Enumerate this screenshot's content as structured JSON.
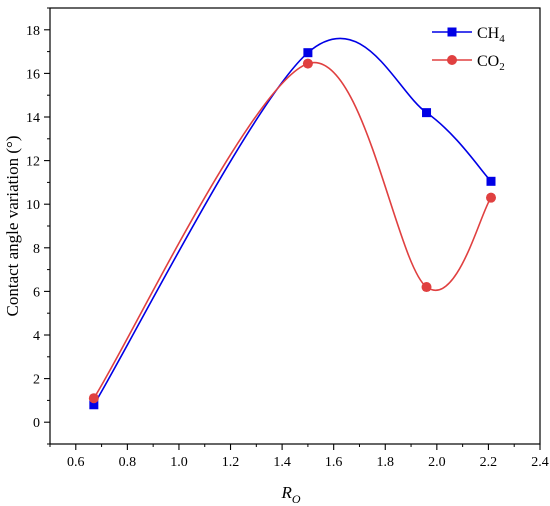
{
  "chart_data": {
    "type": "line",
    "title": "",
    "xlabel": "R",
    "xlabel_subscript": "O",
    "ylabel": "Contact angle variation (°)",
    "xlim": [
      0.5,
      2.4
    ],
    "ylim": [
      -1,
      19
    ],
    "xticks": [
      "0.6",
      "0.8",
      "1.0",
      "1.2",
      "1.4",
      "1.6",
      "1.8",
      "2.0",
      "2.2",
      "2.4"
    ],
    "yticks": [
      "0",
      "2",
      "4",
      "6",
      "8",
      "10",
      "12",
      "14",
      "16",
      "18"
    ],
    "grid": false,
    "legend_position": "top-right",
    "series": [
      {
        "name": "CH4",
        "name_base": "CH",
        "name_sub": "4",
        "color": "#0000e6",
        "marker": "square",
        "x": [
          0.67,
          1.5,
          1.96,
          2.21
        ],
        "y": [
          0.8,
          16.95,
          14.2,
          11.05
        ]
      },
      {
        "name": "CO2",
        "name_base": "CO",
        "name_sub": "2",
        "color": "#e04040",
        "marker": "circle",
        "x": [
          0.67,
          1.5,
          1.96,
          2.21
        ],
        "y": [
          1.1,
          16.45,
          6.2,
          10.3
        ]
      }
    ]
  }
}
